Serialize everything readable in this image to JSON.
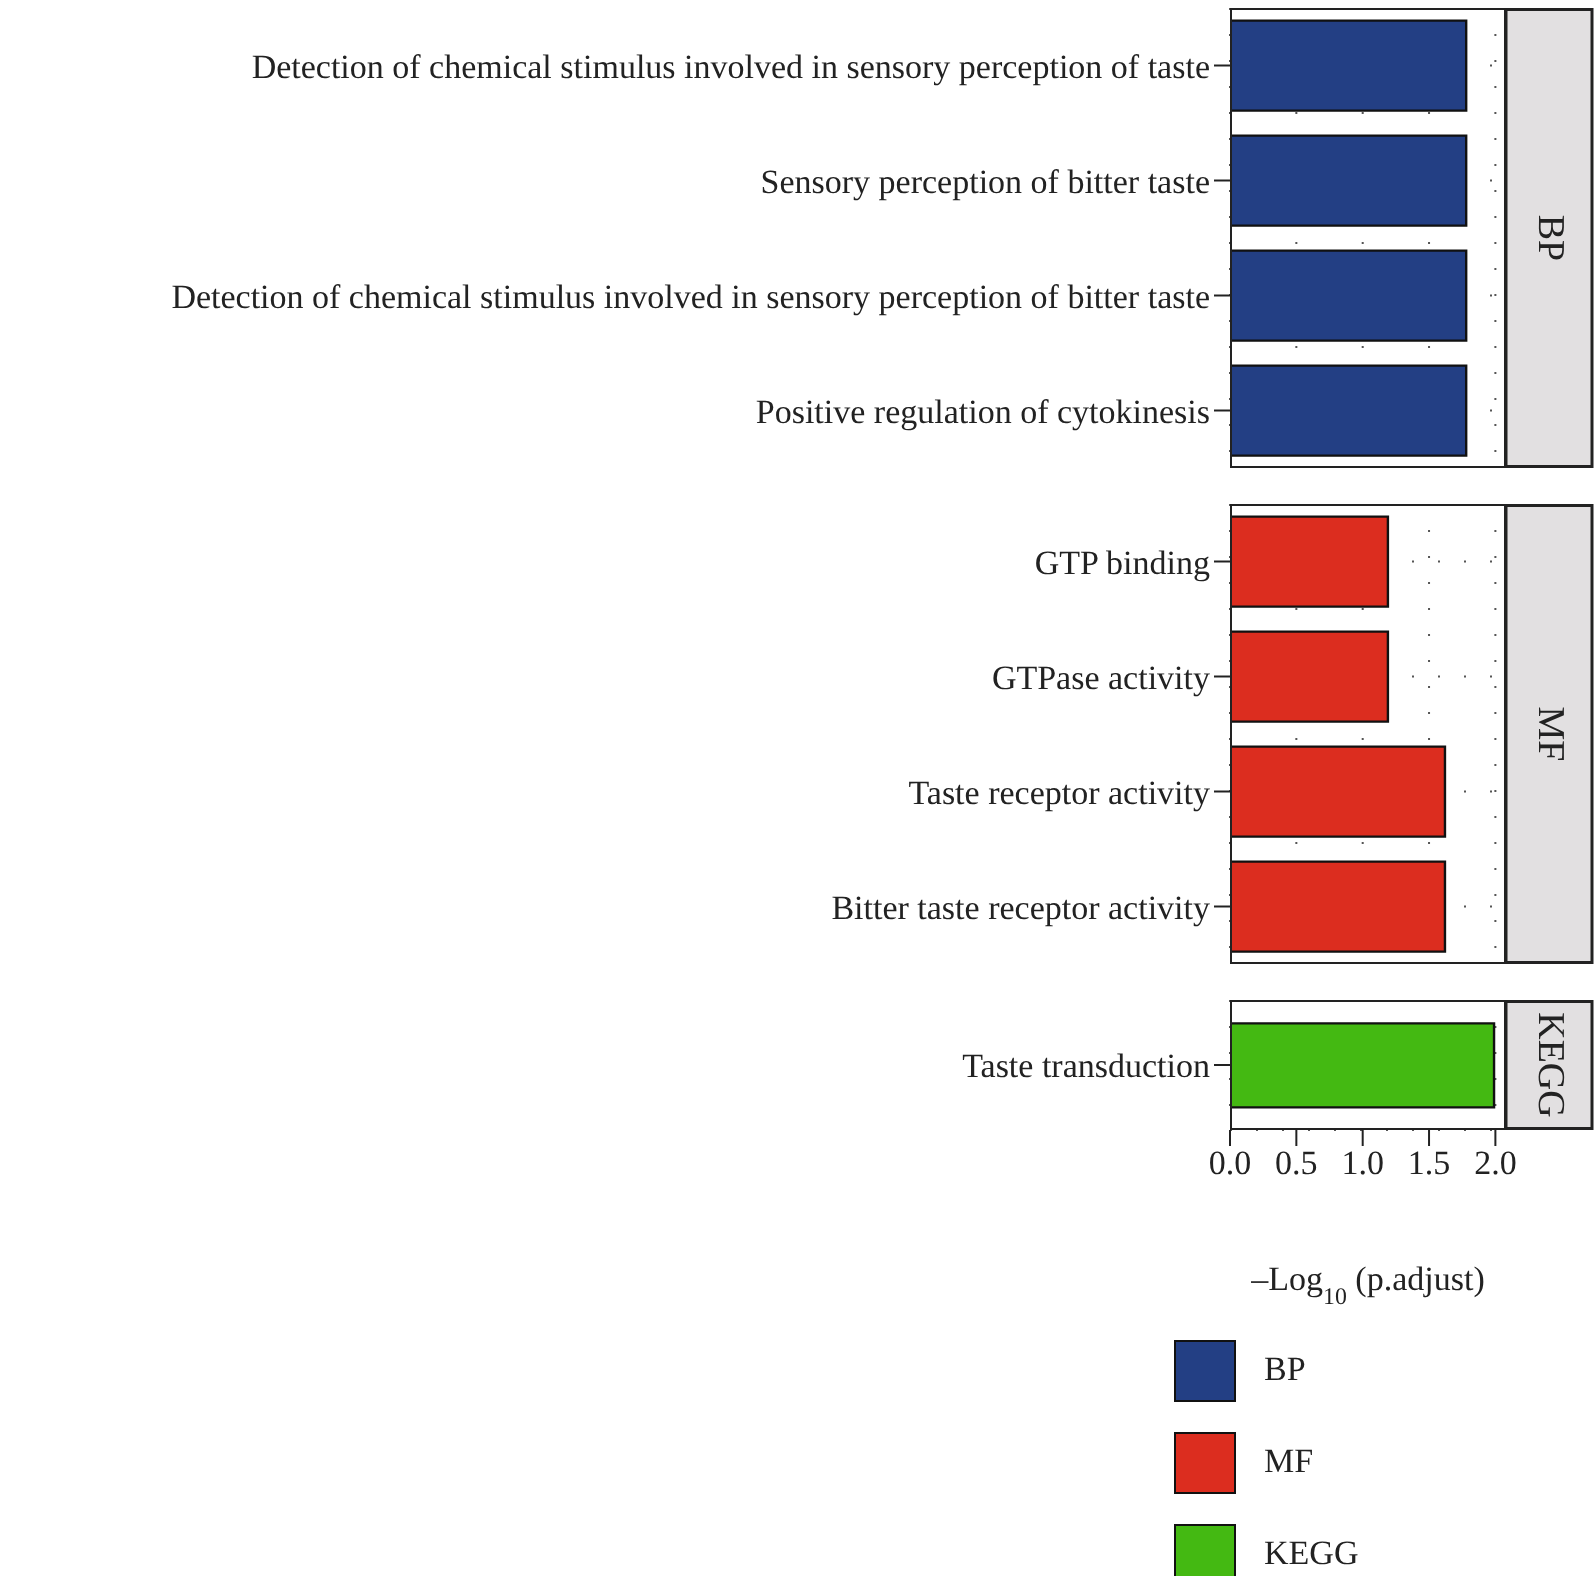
{
  "chart_data": [
    {
      "type": "bar",
      "orientation": "horizontal",
      "y2label": "BP",
      "categories": [
        "Detection of chemical stimulus involved in sensory perception of taste",
        "Sensory perception of bitter taste",
        "Detection of chemical stimulus involved in sensory perception of bitter taste",
        "Positive regulation of cytokinesis"
      ],
      "series": [
        {
          "name": "BP",
          "color": "#233f84",
          "values": [
            1.78,
            1.78,
            1.78,
            1.78
          ]
        }
      ],
      "xlim": [
        0,
        2.08
      ],
      "xticks": [
        0,
        0.5,
        1,
        1.5,
        2
      ],
      "tick_labels": "y",
      "grid": true,
      "legend": "bottom"
    },
    {
      "type": "bar",
      "orientation": "horizontal",
      "y2label": "MF",
      "categories": [
        "GTP binding",
        "GTPase activity",
        "Taste receptor activity",
        "Bitter taste receptor activity"
      ],
      "series": [
        {
          "name": "MF",
          "color": "#dc2d1f",
          "values": [
            1.19,
            1.19,
            1.62,
            1.62
          ]
        }
      ],
      "xlim": [
        0,
        2.08
      ],
      "xticks": [
        0,
        0.5,
        1,
        1.5,
        2
      ],
      "tick_labels": "y",
      "grid": true,
      "legend": "bottom"
    },
    {
      "type": "bar",
      "orientation": "horizontal",
      "y2label": "KEGG",
      "categories": [
        "Taste transduction"
      ],
      "series": [
        {
          "name": "KEGG",
          "color": "#44b912",
          "values": [
            1.99
          ]
        }
      ],
      "xlim": [
        0,
        2.08
      ],
      "xticks": [
        {
          "value": 0,
          "label": "0.0"
        },
        {
          "value": 0.5,
          "label": "0.5"
        },
        {
          "value": 1,
          "label": "1.0"
        },
        {
          "value": 1.5,
          "label": "1.5"
        },
        {
          "value": 2,
          "label": "2.0"
        }
      ],
      "xlabel": "–Log$_{10}$ (p.adjust)",
      "grid": true,
      "legend": "bottom"
    }
  ]
}
